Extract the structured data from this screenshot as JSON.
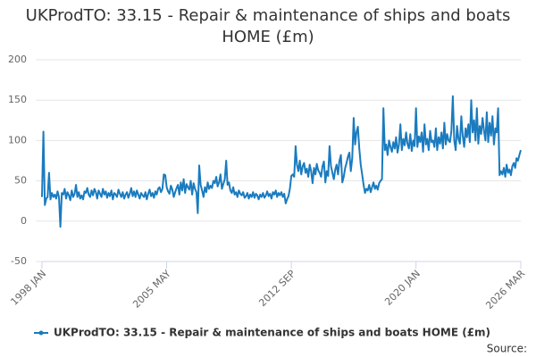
{
  "chart_data": {
    "type": "line",
    "title": "UKProdTO: 33.15 - Repair & maintenance of ships and boats HOME (£m)",
    "source": "Source:",
    "categories": [
      "1998 JAN",
      null,
      null,
      null,
      null,
      null,
      null,
      null,
      null,
      null,
      null,
      null,
      null,
      null,
      null,
      null,
      null,
      null,
      null,
      null,
      null,
      null,
      null,
      null,
      null,
      null,
      null,
      null,
      null,
      null,
      null,
      null,
      null,
      null,
      null,
      null,
      null,
      null,
      null,
      null,
      null,
      null,
      null,
      null,
      null,
      null,
      null,
      null,
      null,
      null,
      null,
      null,
      null,
      null,
      null,
      null,
      null,
      null,
      null,
      null,
      null,
      null,
      null,
      null,
      null,
      null,
      null,
      null,
      null,
      null,
      null,
      null,
      null,
      null,
      null,
      null,
      null,
      null,
      null,
      null,
      null,
      null,
      null,
      null,
      null,
      null,
      null,
      null,
      "2005 MAY",
      null,
      null,
      null,
      null,
      null,
      null,
      null,
      null,
      null,
      null,
      null,
      null,
      null,
      null,
      null,
      null,
      null,
      null,
      null,
      null,
      null,
      null,
      null,
      null,
      null,
      null,
      null,
      null,
      null,
      null,
      null,
      null,
      null,
      null,
      null,
      null,
      null,
      null,
      null,
      null,
      null,
      null,
      null,
      null,
      null,
      null,
      null,
      null,
      null,
      null,
      null,
      null,
      null,
      null,
      null,
      null,
      null,
      null,
      null,
      null,
      null,
      null,
      null,
      null,
      null,
      null,
      null,
      null,
      null,
      null,
      null,
      null,
      null,
      null,
      null,
      null,
      null,
      null,
      null,
      null,
      null,
      null,
      null,
      null,
      null,
      null,
      null,
      "2012 SEP",
      null,
      null,
      null,
      null,
      null,
      null,
      null,
      null,
      null,
      null,
      null,
      null,
      null,
      null,
      null,
      null,
      null,
      null,
      null,
      null,
      null,
      null,
      null,
      null,
      null,
      null,
      null,
      null,
      null,
      null,
      null,
      null,
      null,
      null,
      null,
      null,
      null,
      null,
      null,
      null,
      null,
      null,
      null,
      null,
      null,
      null,
      null,
      null,
      null,
      null,
      null,
      null,
      null,
      null,
      null,
      null,
      null,
      null,
      null,
      null,
      null,
      null,
      null,
      null,
      null,
      null,
      null,
      null,
      null,
      null,
      null,
      null,
      null,
      null,
      null,
      null,
      null,
      null,
      null,
      null,
      null,
      null,
      null,
      null,
      null,
      null,
      null,
      "2020 JAN",
      null,
      null,
      null,
      null,
      null,
      null,
      null,
      null,
      null,
      null,
      null,
      null,
      null,
      null,
      null,
      null,
      null,
      null,
      null,
      null,
      null,
      null,
      null,
      null,
      null,
      null,
      null,
      null,
      null,
      null,
      null,
      null,
      null,
      null,
      null,
      null,
      null,
      null,
      null,
      null,
      null,
      null,
      null,
      null,
      null,
      null,
      null,
      null,
      null,
      null,
      null,
      null,
      null,
      null,
      null,
      null,
      null,
      null,
      null,
      null,
      null,
      null,
      null,
      null,
      null,
      null,
      null,
      null,
      null,
      null,
      null,
      null,
      null,
      "2026 MAR"
    ],
    "series": [
      {
        "name": "UKProdTO: 33.15 - Repair & maintenance of ships and boats HOME (£m)",
        "color": "#1a7bbf",
        "values": [
          30,
          111,
          20,
          28,
          30,
          60,
          27,
          35,
          30,
          33,
          28,
          37,
          30,
          -7,
          35,
          33,
          40,
          28,
          36,
          32,
          26,
          38,
          30,
          34,
          45,
          30,
          36,
          28,
          32,
          27,
          37,
          35,
          41,
          33,
          30,
          38,
          32,
          40,
          36,
          28,
          38,
          34,
          30,
          40,
          33,
          37,
          29,
          35,
          31,
          38,
          27,
          35,
          33,
          30,
          39,
          34,
          30,
          36,
          28,
          33,
          36,
          29,
          34,
          41,
          31,
          37,
          30,
          38,
          33,
          28,
          35,
          32,
          30,
          36,
          27,
          34,
          39,
          31,
          35,
          29,
          37,
          33,
          40,
          42,
          36,
          40,
          58,
          57,
          42,
          37,
          34,
          44,
          39,
          30,
          36,
          41,
          45,
          33,
          48,
          38,
          52,
          35,
          46,
          42,
          39,
          50,
          33,
          47,
          40,
          36,
          10,
          69,
          45,
          38,
          30,
          42,
          36,
          48,
          40,
          44,
          41,
          50,
          47,
          55,
          43,
          48,
          58,
          40,
          46,
          52,
          75,
          45,
          48,
          38,
          35,
          42,
          33,
          36,
          30,
          38,
          34,
          32,
          36,
          29,
          31,
          35,
          28,
          33,
          30,
          36,
          29,
          34,
          32,
          27,
          33,
          30,
          35,
          29,
          32,
          37,
          31,
          34,
          28,
          36,
          33,
          38,
          30,
          35,
          32,
          36,
          30,
          34,
          22,
          27,
          31,
          40,
          56,
          58,
          55,
          93,
          70,
          62,
          75,
          58,
          68,
          72,
          60,
          65,
          55,
          70,
          62,
          47,
          66,
          58,
          71,
          63,
          60,
          55,
          68,
          74,
          48,
          62,
          56,
          93,
          68,
          60,
          52,
          64,
          70,
          58,
          75,
          82,
          48,
          55,
          66,
          72,
          80,
          85,
          62,
          78,
          128,
          95,
          110,
          117,
          90,
          70,
          58,
          45,
          35,
          40,
          38,
          45,
          36,
          42,
          48,
          40,
          44,
          39,
          47,
          50,
          52,
          140,
          88,
          95,
          82,
          100,
          92,
          86,
          98,
          90,
          104,
          85,
          95,
          120,
          88,
          102,
          94,
          110,
          96,
          90,
          108,
          87,
          100,
          93,
          140,
          92,
          105,
          98,
          110,
          86,
          120,
          95,
          102,
          88,
          112,
          98,
          100,
          92,
          115,
          88,
          104,
          96,
          110,
          90,
          122,
          95,
          108,
          100,
          98,
          112,
          155,
          100,
          88,
          118,
          102,
          96,
          130,
          106,
          92,
          115,
          104,
          120,
          98,
          150,
          110,
          125,
          100,
          140,
          96,
          118,
          108,
          128,
          112,
          100,
          135,
          98,
          122,
          106,
          130,
          95,
          115,
          110,
          140,
          57,
          62,
          58,
          66,
          55,
          70,
          60,
          64,
          57,
          68,
          72,
          66,
          78,
          75,
          82,
          88
        ]
      }
    ],
    "ylim": [
      -50,
      200
    ],
    "yticks": [
      -50,
      0,
      50,
      100,
      150,
      200
    ],
    "grid": true,
    "legend": "bottom"
  }
}
